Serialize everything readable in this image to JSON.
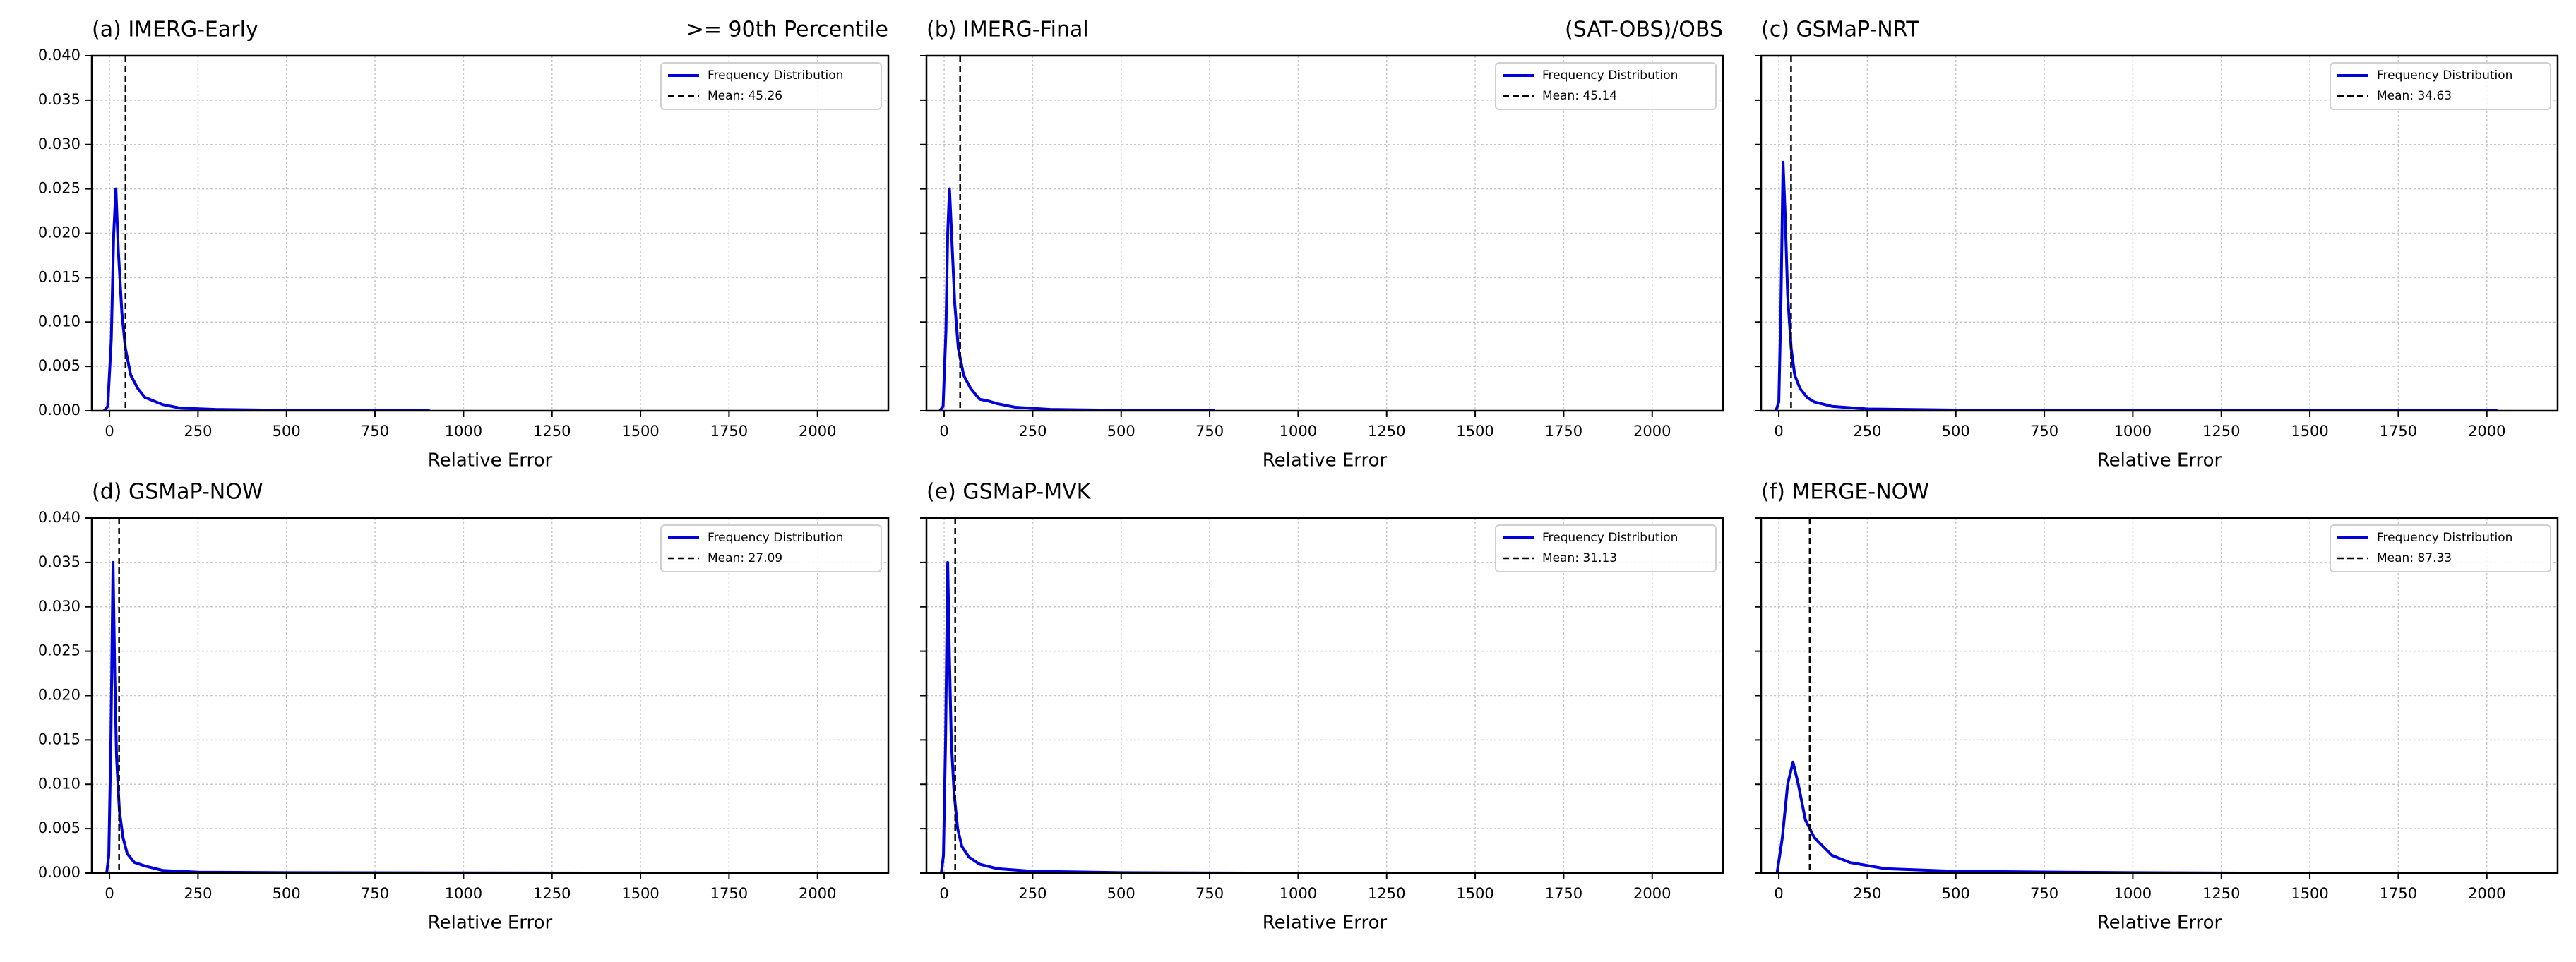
{
  "chart_data": [
    {
      "type": "line",
      "title": "(a) IMERG-Early",
      "subtitle": ">= 90th Percentile",
      "xlabel": "Relative Error",
      "x": [
        -15,
        -5,
        5,
        12,
        18,
        25,
        35,
        45,
        60,
        80,
        100,
        150,
        200,
        300,
        500,
        700,
        905
      ],
      "series": [
        {
          "name": "Frequency Distribution",
          "color": "#0000dd",
          "values": [
            0,
            0.0005,
            0.008,
            0.02,
            0.025,
            0.018,
            0.011,
            0.007,
            0.004,
            0.0025,
            0.0015,
            0.0007,
            0.0003,
            0.00015,
            5e-05,
            2e-05,
            0
          ]
        }
      ],
      "mean": {
        "value": 45.26,
        "label": "Mean: 45.26"
      },
      "xlim": [
        -50,
        2200
      ],
      "xticks": [
        0,
        250,
        500,
        750,
        1000,
        1250,
        1500,
        1750,
        2000
      ],
      "ylim": [
        0,
        0.04
      ],
      "yticks": [
        {
          "value": 0,
          "label": "0.000"
        },
        {
          "value": 0.005,
          "label": "0.005"
        },
        {
          "value": 0.01,
          "label": "0.010"
        },
        {
          "value": 0.015,
          "label": "0.015"
        },
        {
          "value": 0.02,
          "label": "0.020"
        },
        {
          "value": 0.025,
          "label": "0.025"
        },
        {
          "value": 0.03,
          "label": "0.030"
        },
        {
          "value": 0.035,
          "label": "0.035"
        },
        {
          "value": 0.04,
          "label": "0.040"
        }
      ],
      "grid": true,
      "legend": "upper right"
    },
    {
      "type": "line",
      "title": "(b) IMERG-Final",
      "subtitle": "(SAT-OBS)/OBS",
      "xlabel": "Relative Error",
      "x": [
        -12,
        -3,
        5,
        10,
        15,
        22,
        30,
        40,
        55,
        75,
        100,
        125,
        150,
        200,
        300,
        500,
        765
      ],
      "series": [
        {
          "name": "Frequency Distribution",
          "color": "#0000dd",
          "values": [
            0,
            0.0005,
            0.009,
            0.02,
            0.025,
            0.019,
            0.012,
            0.007,
            0.004,
            0.0025,
            0.0013,
            0.0011,
            0.0008,
            0.0004,
            0.00015,
            5e-05,
            0
          ]
        }
      ],
      "mean": {
        "value": 45.14,
        "label": "Mean: 45.14"
      },
      "xlim": [
        -50,
        2200
      ],
      "xticks": [
        0,
        250,
        500,
        750,
        1000,
        1250,
        1500,
        1750,
        2000
      ],
      "ylim": [
        0,
        0.04
      ],
      "yticks": [
        0,
        0.005,
        0.01,
        0.015,
        0.02,
        0.025,
        0.03,
        0.035,
        0.04
      ],
      "grid": true,
      "legend": "upper right"
    },
    {
      "type": "line",
      "title": "(c) GSMaP-NRT",
      "xlabel": "Relative Error",
      "x": [
        -8,
        0,
        6,
        12,
        18,
        25,
        35,
        45,
        60,
        80,
        100,
        150,
        250,
        500,
        1000,
        1500,
        2030
      ],
      "series": [
        {
          "name": "Frequency Distribution",
          "color": "#0000dd",
          "values": [
            0,
            0.001,
            0.012,
            0.028,
            0.022,
            0.013,
            0.007,
            0.004,
            0.0025,
            0.0015,
            0.001,
            0.0005,
            0.0002,
            8e-05,
            3e-05,
            2e-05,
            0
          ]
        }
      ],
      "mean": {
        "value": 34.63,
        "label": "Mean: 34.63"
      },
      "xlim": [
        -50,
        2200
      ],
      "xticks": [
        0,
        250,
        500,
        750,
        1000,
        1250,
        1500,
        1750,
        2000
      ],
      "ylim": [
        0,
        0.04
      ],
      "yticks": [
        0,
        0.005,
        0.01,
        0.015,
        0.02,
        0.025,
        0.03,
        0.035,
        0.04
      ],
      "grid": true,
      "legend": "upper right"
    },
    {
      "type": "line",
      "title": "(d) GSMaP-NOW",
      "xlabel": "Relative Error",
      "x": [
        -8,
        -2,
        4,
        10,
        15,
        20,
        28,
        38,
        50,
        70,
        100,
        150,
        250,
        500,
        1000,
        1350
      ],
      "series": [
        {
          "name": "Frequency Distribution",
          "color": "#0000dd",
          "values": [
            0,
            0.002,
            0.015,
            0.035,
            0.022,
            0.013,
            0.007,
            0.004,
            0.0022,
            0.0012,
            0.0008,
            0.0003,
            0.0001,
            5e-05,
            2e-05,
            0
          ]
        }
      ],
      "mean": {
        "value": 27.09,
        "label": "Mean: 27.09"
      },
      "xlim": [
        -50,
        2200
      ],
      "xticks": [
        0,
        250,
        500,
        750,
        1000,
        1250,
        1500,
        1750,
        2000
      ],
      "ylim": [
        0,
        0.04
      ],
      "yticks": [
        {
          "value": 0,
          "label": "0.000"
        },
        {
          "value": 0.005,
          "label": "0.005"
        },
        {
          "value": 0.01,
          "label": "0.010"
        },
        {
          "value": 0.015,
          "label": "0.015"
        },
        {
          "value": 0.02,
          "label": "0.020"
        },
        {
          "value": 0.025,
          "label": "0.025"
        },
        {
          "value": 0.03,
          "label": "0.030"
        },
        {
          "value": 0.035,
          "label": "0.035"
        },
        {
          "value": 0.04,
          "label": "0.040"
        }
      ],
      "grid": true,
      "legend": "upper right"
    },
    {
      "type": "line",
      "title": "(e) GSMaP-MVK",
      "xlabel": "Relative Error",
      "x": [
        -8,
        -2,
        4,
        10,
        15,
        20,
        28,
        38,
        50,
        70,
        100,
        150,
        250,
        500,
        860
      ],
      "series": [
        {
          "name": "Frequency Distribution",
          "color": "#0000dd",
          "values": [
            0,
            0.002,
            0.015,
            0.035,
            0.024,
            0.015,
            0.009,
            0.005,
            0.003,
            0.0018,
            0.001,
            0.0005,
            0.0002,
            5e-05,
            0
          ]
        }
      ],
      "mean": {
        "value": 31.13,
        "label": "Mean: 31.13"
      },
      "xlim": [
        -50,
        2200
      ],
      "xticks": [
        0,
        250,
        500,
        750,
        1000,
        1250,
        1500,
        1750,
        2000
      ],
      "ylim": [
        0,
        0.04
      ],
      "yticks": [
        0,
        0.005,
        0.01,
        0.015,
        0.02,
        0.025,
        0.03,
        0.035,
        0.04
      ],
      "grid": true,
      "legend": "upper right"
    },
    {
      "type": "line",
      "title": "(f) MERGE-NOW",
      "xlabel": "Relative Error",
      "x": [
        -5,
        10,
        25,
        40,
        55,
        75,
        100,
        150,
        200,
        300,
        500,
        800,
        1000,
        1310
      ],
      "series": [
        {
          "name": "Frequency Distribution",
          "color": "#0000dd",
          "values": [
            0,
            0.004,
            0.01,
            0.0125,
            0.01,
            0.006,
            0.004,
            0.002,
            0.0012,
            0.0005,
            0.0002,
            0.0001,
            5e-05,
            0
          ]
        }
      ],
      "mean": {
        "value": 87.33,
        "label": "Mean: 87.33"
      },
      "xlim": [
        -50,
        2200
      ],
      "xticks": [
        0,
        250,
        500,
        750,
        1000,
        1250,
        1500,
        1750,
        2000
      ],
      "ylim": [
        0,
        0.04
      ],
      "yticks": [
        0,
        0.005,
        0.01,
        0.015,
        0.02,
        0.025,
        0.03,
        0.035,
        0.04
      ],
      "grid": true,
      "legend": "upper right"
    }
  ]
}
